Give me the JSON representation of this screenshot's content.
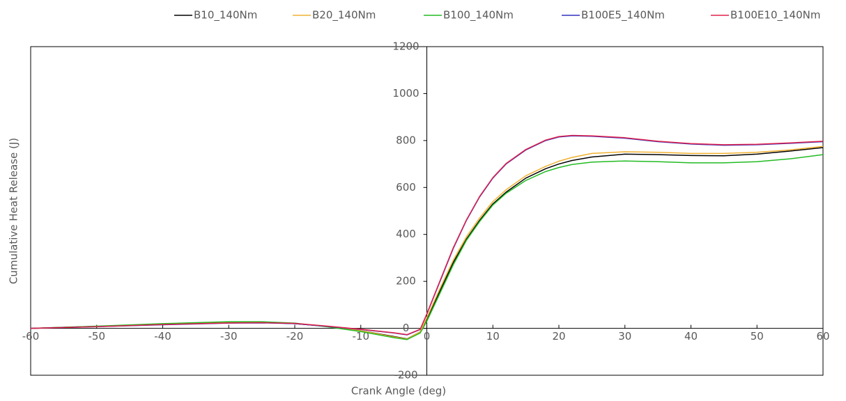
{
  "chart_data": {
    "type": "line",
    "x_label": "Crank Angle (deg)",
    "y_label": "Cumulative Heat Release (J)",
    "x": [
      -60,
      -50,
      -40,
      -30,
      -25,
      -20,
      -15,
      -10,
      -5,
      -3,
      -1,
      0,
      2,
      4,
      6,
      8,
      10,
      12,
      15,
      18,
      20,
      22,
      25,
      30,
      35,
      40,
      45,
      50,
      55,
      60
    ],
    "series": [
      {
        "name": "B10_140Nm",
        "color": "#000000",
        "values": [
          0,
          8,
          18,
          25,
          25,
          20,
          8,
          -10,
          -35,
          -45,
          -15,
          40,
          160,
          280,
          380,
          460,
          530,
          580,
          640,
          680,
          700,
          715,
          730,
          742,
          740,
          736,
          735,
          742,
          755,
          770
        ]
      },
      {
        "name": "B20_140Nm",
        "color": "#f0b030",
        "values": [
          0,
          8,
          18,
          26,
          26,
          21,
          8,
          -10,
          -37,
          -46,
          -15,
          45,
          170,
          290,
          390,
          470,
          540,
          590,
          650,
          690,
          712,
          728,
          745,
          752,
          750,
          745,
          745,
          750,
          760,
          775
        ]
      },
      {
        "name": "B100_140Nm",
        "color": "#22bb22",
        "values": [
          0,
          9,
          20,
          28,
          28,
          22,
          6,
          -14,
          -40,
          -48,
          -20,
          30,
          150,
          270,
          375,
          455,
          525,
          575,
          630,
          668,
          685,
          698,
          708,
          713,
          710,
          705,
          705,
          710,
          722,
          740
        ]
      },
      {
        "name": "B100E5_140Nm",
        "color": "#3030c0",
        "values": [
          0,
          7,
          15,
          22,
          23,
          20,
          8,
          -5,
          -20,
          -28,
          -5,
          60,
          200,
          340,
          460,
          560,
          640,
          700,
          760,
          800,
          815,
          820,
          818,
          810,
          795,
          785,
          780,
          782,
          788,
          795
        ]
      },
      {
        "name": "B100E10_140Nm",
        "color": "#e0204a",
        "values": [
          0,
          7,
          16,
          23,
          24,
          21,
          9,
          -4,
          -19,
          -27,
          -4,
          62,
          203,
          343,
          462,
          562,
          642,
          702,
          762,
          802,
          817,
          822,
          820,
          812,
          797,
          787,
          782,
          784,
          790,
          797
        ]
      }
    ],
    "xlim": [
      -60,
      60
    ],
    "xticks": [
      -60,
      -50,
      -40,
      -30,
      -20,
      -10,
      0,
      10,
      20,
      30,
      40,
      50,
      60
    ],
    "ylim": [
      -200,
      1200
    ],
    "yticks": [
      -200,
      0,
      200,
      400,
      600,
      800,
      1000,
      1200
    ],
    "grid": false,
    "legend": "top"
  }
}
